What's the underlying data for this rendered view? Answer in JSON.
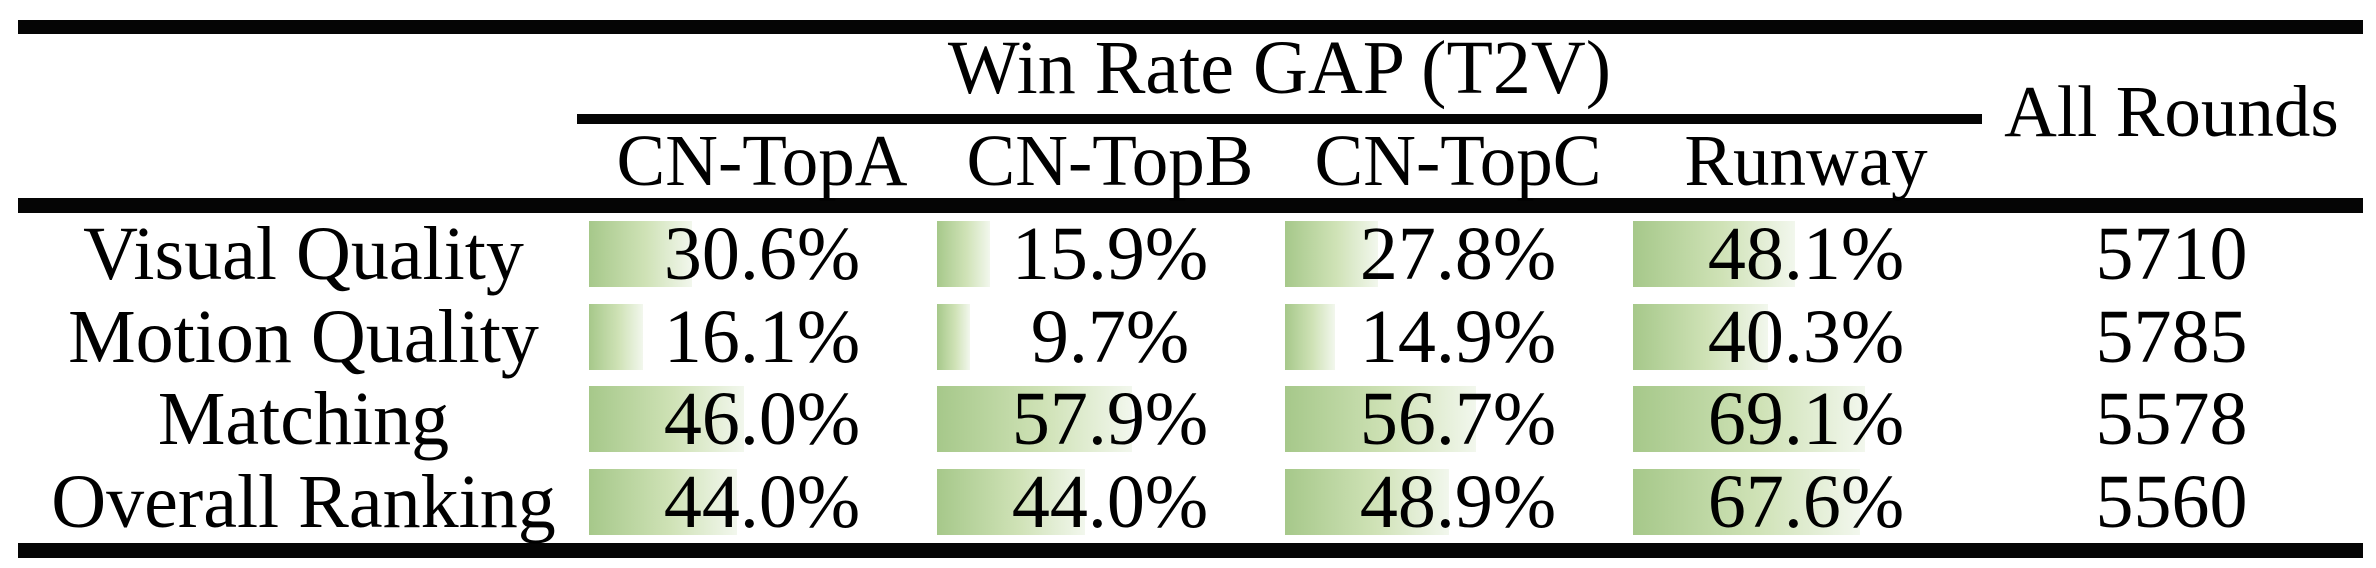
{
  "table": {
    "title": "Win Rate GAP (T2V)",
    "all_rounds_header": "All Rounds",
    "columns": [
      "CN-TopA",
      "CN-TopB",
      "CN-TopC",
      "Runway"
    ],
    "rows": [
      {
        "label": "Visual Quality",
        "values": [
          "30.6%",
          "15.9%",
          "27.8%",
          "48.1%"
        ],
        "bar_pcts": [
          30.6,
          15.9,
          27.8,
          48.1
        ],
        "all_rounds": "5710"
      },
      {
        "label": "Motion Quality",
        "values": [
          "16.1%",
          "9.7%",
          "14.9%",
          "40.3%"
        ],
        "bar_pcts": [
          16.1,
          9.7,
          14.9,
          40.3
        ],
        "all_rounds": "5785"
      },
      {
        "label": "Matching",
        "values": [
          "46.0%",
          "57.9%",
          "56.7%",
          "69.1%"
        ],
        "bar_pcts": [
          46.0,
          57.9,
          56.7,
          69.1
        ],
        "all_rounds": "5578"
      },
      {
        "label": "Overall Ranking",
        "values": [
          "44.0%",
          "44.0%",
          "48.9%",
          "67.6%"
        ],
        "bar_pcts": [
          44.0,
          44.0,
          48.9,
          67.6
        ],
        "all_rounds": "5560"
      }
    ],
    "bar_colors": {
      "start": "#a6c88a",
      "mid": "#cfe2b6",
      "end": "#f2f7ed"
    },
    "rule_color": "#050505"
  },
  "chart_data": {
    "type": "table",
    "title": "Win Rate GAP (T2V)",
    "categories": [
      "Visual Quality",
      "Motion Quality",
      "Matching",
      "Overall Ranking"
    ],
    "series": [
      {
        "name": "CN-TopA",
        "values": [
          30.6,
          16.1,
          46.0,
          44.0
        ]
      },
      {
        "name": "CN-TopB",
        "values": [
          15.9,
          9.7,
          57.9,
          44.0
        ]
      },
      {
        "name": "CN-TopC",
        "values": [
          27.8,
          14.9,
          56.7,
          48.9
        ]
      },
      {
        "name": "Runway",
        "values": [
          48.1,
          40.3,
          69.1,
          67.6
        ]
      },
      {
        "name": "All Rounds",
        "values": [
          5710,
          5785,
          5578,
          5560
        ]
      }
    ],
    "value_unit_note": "Win Rate GAP columns are percentages rendered with proportional green data bars; All Rounds are counts"
  }
}
